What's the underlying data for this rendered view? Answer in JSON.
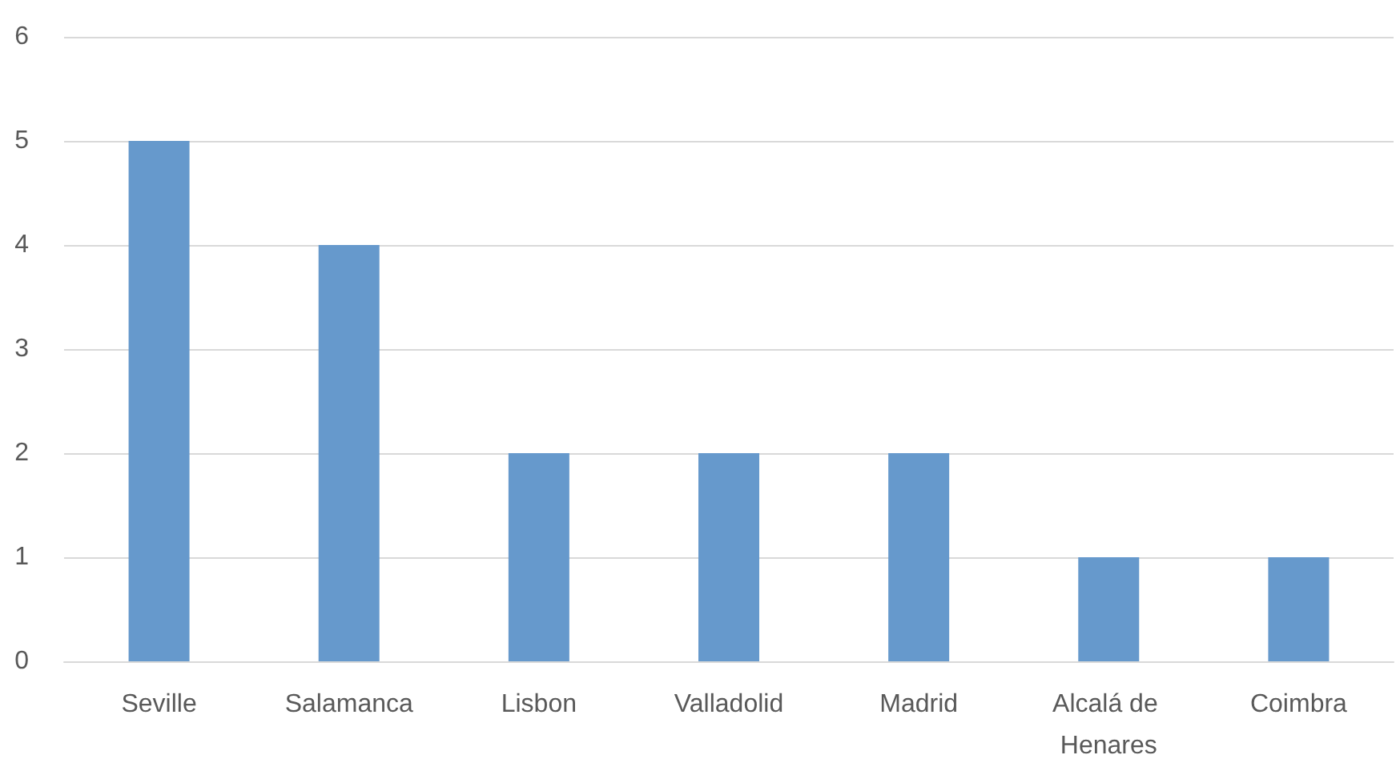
{
  "chart_data": {
    "type": "bar",
    "categories": [
      "Seville",
      "Salamanca",
      "Lisbon",
      "Valladolid",
      "Madrid",
      "Alcalá de Henares",
      "Coimbra"
    ],
    "values": [
      5,
      4,
      2,
      2,
      2,
      1,
      1
    ],
    "color": "#6699cc",
    "ylim": [
      0,
      6
    ],
    "yticks": [
      0,
      1,
      2,
      3,
      4,
      5,
      6
    ],
    "grid": "y"
  }
}
